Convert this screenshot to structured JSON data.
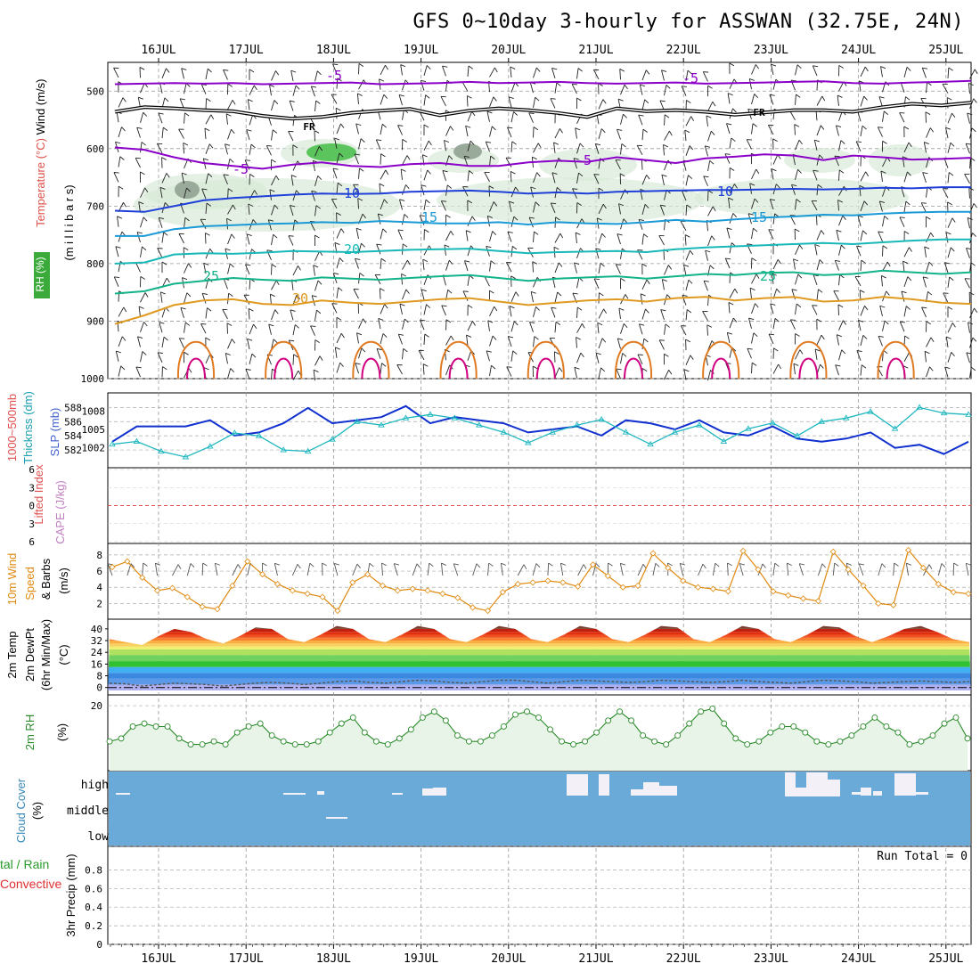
{
  "title": "GFS 0~10day 3-hourly for ASSWAN (32.75E, 24N)",
  "colors": {
    "purple": "#8b00c8",
    "black": "#000000",
    "blue": "#1f3fd9",
    "lightblue": "#1a9ad6",
    "teal": "#18b8b8",
    "green": "#13b38a",
    "orange": "#e09a20",
    "darkorange": "#e07a20",
    "magenta": "#d00080",
    "slp": "#1030d0",
    "thick": "#20b8c0",
    "wind": "#e08a10",
    "rh2m": "#2a8a2a",
    "cloud": "#6aaad8"
  },
  "time_axis": {
    "labels": [
      "16JUL",
      "17JUL",
      "18JUL",
      "19JUL",
      "20JUL",
      "21JUL",
      "22JUL",
      "23JUL",
      "24JUL",
      "25JUL"
    ]
  },
  "panel_labels": {
    "upper": {
      "wind": "Wind (m/s)",
      "temp": "Temperature (°C)",
      "rh": "RH (%)",
      "units": "(m i l l i b a r s)"
    },
    "press": {
      "thick1": "1000~500mb",
      "thick2": "Thicknss (dm)",
      "slp": "SLP (mb)"
    },
    "stab": {
      "li": "Lifted Index",
      "cape": "CAPE (J/kg)"
    },
    "wind10": {
      "l1": "10m Wind",
      "l2": "Speed",
      "l3": "& Barbs",
      "units": "(m/s)"
    },
    "temp2m": {
      "l1": "2m Temp",
      "l2": "2m DewPt",
      "l3": "(6hr Min/Max)",
      "units": "(°C)"
    },
    "rh2m": {
      "l1": "2m RH",
      "units": "(%)"
    },
    "cloud": {
      "l1": "Cloud Cover",
      "units": "(%)",
      "levels": [
        "high",
        "middle",
        "low"
      ]
    },
    "precip": {
      "l1": "tal / Rain",
      "l2": "Convective",
      "l3": "3hr Precip (mm)",
      "run_total": "Run Total = 0"
    }
  },
  "chart_data": [
    {
      "type": "line",
      "panel": "upper-air",
      "ylabel": "(m i l l i b a r s)",
      "y_ticks": [
        500,
        600,
        700,
        800,
        900,
        1000
      ],
      "ylim": [
        1000,
        450
      ],
      "contour_labels": [
        "-5",
        "-5",
        "FR",
        "FR",
        "-5",
        "-5",
        "10",
        "10",
        "15",
        "15",
        "20",
        "25",
        "25",
        "30"
      ],
      "isotherms": [
        {
          "name": "-5",
          "color": "purple",
          "p": [
            488,
            487,
            486,
            487,
            486,
            488,
            487,
            486,
            485,
            488,
            487,
            486,
            484,
            486,
            485,
            484,
            486,
            487,
            486,
            485,
            487,
            486,
            485,
            484,
            483,
            486,
            487,
            485,
            484,
            482
          ]
        },
        {
          "name": "FR",
          "color": "black",
          "p": [
            536,
            528,
            530,
            533,
            535,
            543,
            548,
            545,
            538,
            534,
            531,
            542,
            534,
            530,
            533,
            538,
            545,
            530,
            535,
            533,
            536,
            541,
            537,
            533,
            533,
            536,
            528,
            522,
            525,
            520
          ]
        },
        {
          "name": "-5b",
          "color": "purple",
          "p": [
            598,
            602,
            615,
            625,
            630,
            635,
            628,
            624,
            630,
            632,
            627,
            625,
            630,
            630,
            624,
            621,
            623,
            615,
            620,
            625,
            617,
            614,
            610,
            612,
            620,
            612,
            615,
            619,
            618,
            616
          ]
        },
        {
          "name": "10",
          "color": "blue",
          "p": [
            708,
            710,
            700,
            690,
            686,
            683,
            680,
            678,
            679,
            678,
            675,
            674,
            673,
            675,
            678,
            676,
            678,
            675,
            674,
            673,
            672,
            672,
            671,
            670,
            671,
            670,
            668,
            669,
            667,
            667
          ]
        },
        {
          "name": "15",
          "color": "lightblue",
          "p": [
            752,
            752,
            740,
            735,
            733,
            731,
            730,
            728,
            729,
            726,
            728,
            730,
            730,
            728,
            732,
            728,
            730,
            731,
            728,
            724,
            727,
            723,
            720,
            718,
            715,
            716,
            713,
            711,
            710,
            710
          ]
        },
        {
          "name": "20",
          "color": "teal",
          "p": [
            800,
            798,
            784,
            782,
            783,
            781,
            778,
            779,
            780,
            778,
            776,
            775,
            774,
            778,
            782,
            780,
            779,
            778,
            780,
            775,
            772,
            770,
            768,
            766,
            764,
            766,
            763,
            760,
            758,
            758
          ]
        },
        {
          "name": "25",
          "color": "green",
          "p": [
            852,
            848,
            835,
            830,
            825,
            828,
            830,
            824,
            826,
            828,
            825,
            822,
            820,
            825,
            830,
            826,
            824,
            822,
            826,
            822,
            818,
            820,
            816,
            815,
            820,
            818,
            812,
            815,
            818,
            815
          ]
        },
        {
          "name": "30",
          "color": "orange",
          "p": [
            905,
            890,
            872,
            864,
            862,
            870,
            872,
            864,
            868,
            870,
            866,
            862,
            860,
            866,
            872,
            868,
            864,
            862,
            866,
            860,
            858,
            864,
            860,
            858,
            866,
            864,
            858,
            862,
            868,
            870
          ]
        }
      ]
    },
    {
      "type": "line",
      "panel": "slp-thickness",
      "y_ticks_left": [
        582,
        584,
        586,
        588
      ],
      "y_ticks_right": [
        1002,
        1005,
        1008
      ],
      "series": [
        {
          "name": "SLP (mb)",
          "color": "slp",
          "values": [
            1003,
            1005.5,
            1005.5,
            1005.5,
            1006.5,
            1004,
            1004.5,
            1006,
            1008.5,
            1006,
            1006.5,
            1007,
            1008.8,
            1006,
            1007,
            1006.5,
            1006,
            1004.5,
            1005,
            1005.5,
            1004,
            1006.5,
            1006,
            1005,
            1006.5,
            1004.5,
            1004,
            1005.5,
            1003.5,
            1003,
            1003.5,
            1004.5,
            1002,
            1002.5,
            1001,
            1003
          ]
        },
        {
          "name": "1000~500mb Thicknss (dm)",
          "color": "thick",
          "values": [
            582.8,
            583.2,
            581.8,
            581,
            582.5,
            584.4,
            584,
            582,
            581.8,
            583.5,
            586,
            585.5,
            586.5,
            587,
            586.5,
            585.5,
            584.5,
            583,
            584.5,
            585.5,
            586.3,
            584.5,
            582.8,
            584.5,
            585.5,
            583.2,
            585,
            585.8,
            584,
            586,
            586.5,
            587.4,
            585,
            588,
            587.2,
            587
          ]
        }
      ]
    },
    {
      "type": "line",
      "panel": "stability",
      "y_ticks": [
        "6",
        "3",
        "0",
        "3",
        "6"
      ],
      "series": [
        {
          "name": "Lifted Index",
          "values": [
            0
          ]
        },
        {
          "name": "CAPE (J/kg)",
          "values": [
            0
          ]
        }
      ]
    },
    {
      "type": "line",
      "panel": "wind10m",
      "y_ticks": [
        2,
        4,
        6,
        8
      ],
      "series": [
        {
          "name": "10m Wind Speed",
          "color": "wind",
          "values": [
            6.5,
            7.2,
            5.2,
            3.6,
            3.9,
            2.8,
            1.6,
            1.3,
            4.2,
            7.2,
            5.6,
            4.4,
            3.6,
            3.2,
            2.8,
            1.1,
            4.6,
            5.6,
            4.2,
            3.6,
            3.8,
            3.6,
            3.2,
            2.7,
            1.5,
            1.1,
            3.4,
            4.4,
            4.6,
            4.8,
            4.6,
            4.1,
            6.8,
            5.4,
            4.0,
            4.2,
            8.2,
            6.4,
            4.8,
            4.0,
            3.8,
            3.5,
            8.5,
            6.2,
            3.5,
            3.0,
            2.6,
            2.3,
            8.4,
            6.2,
            4.2,
            2.0,
            1.8,
            8.6,
            6.4,
            4.4,
            3.4,
            3.2
          ]
        }
      ]
    },
    {
      "type": "area",
      "panel": "temp2m",
      "y_ticks": [
        0,
        8,
        16,
        24,
        32,
        40
      ],
      "series": [
        {
          "name": "2m Temp",
          "values": [
            33,
            31,
            29,
            35,
            40,
            38,
            33,
            30,
            35,
            41,
            40,
            33,
            31,
            36,
            42,
            40,
            33,
            31,
            36,
            42,
            40,
            33,
            31,
            36,
            42,
            40,
            33,
            31,
            36,
            42,
            40,
            33,
            31,
            36,
            42,
            41,
            33,
            31,
            36,
            42,
            40,
            33,
            31,
            36,
            42,
            41,
            35,
            31,
            35,
            40,
            42,
            38,
            33,
            31
          ]
        },
        {
          "name": "2m DewPt",
          "values": [
            3,
            2.5,
            1,
            2,
            3,
            2.5,
            2,
            1,
            2,
            3,
            3.5,
            3,
            2,
            3,
            4,
            4.5,
            3.5,
            3,
            4,
            5,
            4.5,
            3.5,
            3,
            4,
            5,
            5,
            4,
            3,
            4,
            5,
            4.5,
            4,
            3.5,
            4,
            5,
            4.5,
            4,
            3.5,
            4,
            5,
            4,
            3.5,
            3,
            4,
            5,
            4.5,
            4,
            3,
            3.5,
            4,
            4.5,
            4,
            3.5,
            4
          ]
        }
      ]
    },
    {
      "type": "line",
      "panel": "rh2m",
      "y_ticks": [
        20
      ],
      "series": [
        {
          "name": "2m RH",
          "color": "rh2m",
          "values": [
            8,
            9,
            13,
            14,
            13,
            13,
            9,
            7,
            7,
            8,
            7,
            11,
            13,
            14,
            10,
            8,
            7,
            7,
            8,
            11,
            14,
            16,
            11,
            8,
            7,
            9,
            12,
            16,
            18,
            15,
            10,
            8,
            8,
            10,
            13,
            17,
            18,
            16,
            12,
            8,
            7,
            8,
            11,
            15,
            18,
            15,
            10,
            8,
            7,
            10,
            14,
            18,
            19,
            14,
            9,
            7,
            8,
            11,
            13,
            13,
            11,
            8,
            7,
            8,
            10,
            13,
            16,
            13,
            11,
            7,
            8,
            10,
            14,
            16,
            9
          ]
        }
      ]
    },
    {
      "type": "bar",
      "panel": "cloud",
      "levels": [
        "high",
        "middle",
        "low"
      ],
      "note": "high and middle cloud fractions by 3-hour step",
      "high": [
        0,
        0,
        0,
        0,
        0,
        0,
        0,
        0,
        0,
        0,
        0,
        0,
        0,
        0,
        0,
        0,
        0,
        0,
        0,
        0,
        0,
        0,
        0,
        0,
        0,
        0,
        0,
        0,
        0,
        0,
        0,
        0,
        0,
        0,
        0,
        0,
        0,
        0,
        0,
        0,
        0,
        0,
        0,
        0,
        0,
        0,
        0,
        0,
        0,
        0,
        0,
        0,
        0,
        0,
        0,
        0,
        0,
        0,
        0,
        0,
        0,
        0,
        0,
        0,
        0,
        0,
        0,
        0,
        0,
        0,
        0,
        0,
        0,
        0,
        0,
        0,
        0,
        0
      ],
      "middle": [
        0
      ]
    },
    {
      "type": "bar",
      "panel": "precip",
      "y_ticks": [
        0,
        0.2,
        0.4,
        0.6,
        0.8
      ],
      "ylim": [
        0,
        1
      ],
      "series": [
        {
          "name": "3hr Precip (mm)",
          "values": [
            0
          ]
        }
      ]
    }
  ]
}
